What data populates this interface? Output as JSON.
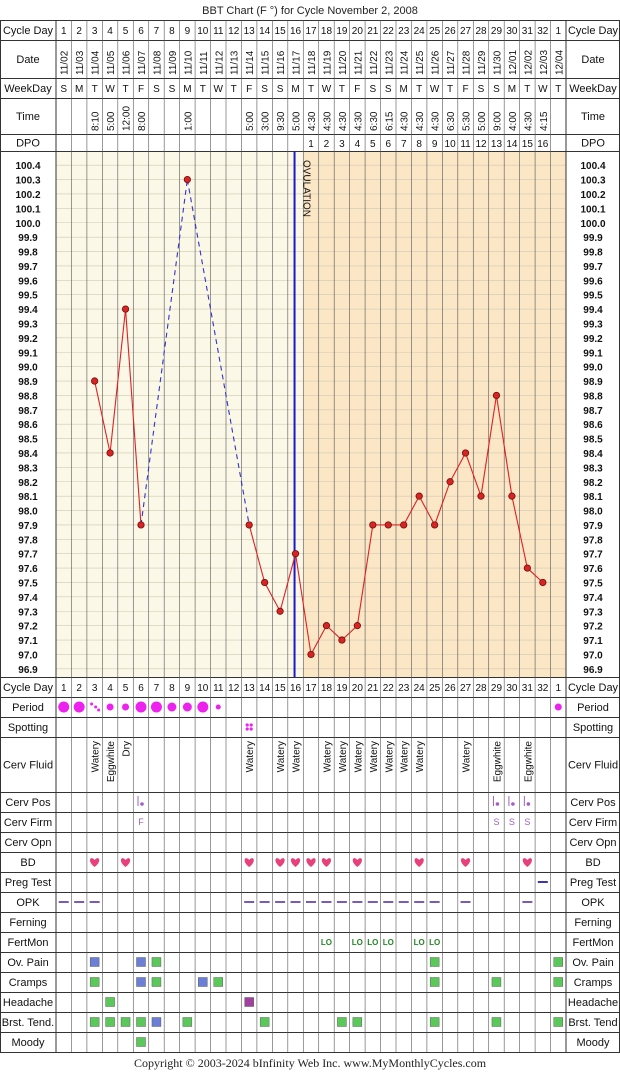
{
  "title": "BBT Chart (F °) for Cycle November 2, 2008",
  "footer": "Copyright © 2003-2024 bInfinity Web Inc.     www.MyMonthlyCycles.com",
  "row_labels": {
    "cycle_day": "Cycle Day",
    "date": "Date",
    "weekday": "WeekDay",
    "time": "Time",
    "dpo": "DPO",
    "period": "Period",
    "spotting": "Spotting",
    "cerv_fluid": "Cerv Fluid",
    "cerv_pos": "Cerv Pos",
    "cerv_firm": "Cerv Firm",
    "cerv_opn": "Cerv Opn",
    "bd": "BD",
    "preg_test": "Preg Test",
    "opk": "OPK",
    "ferning": "Ferning",
    "fertmon": "FertMon",
    "ov_pain": "Ov. Pain",
    "cramps": "Cramps",
    "headache": "Headache",
    "brst_tend": "Brst. Tend.",
    "moody": "Moody"
  },
  "right_labels": {
    "brst_tend": "Brst. Tend"
  },
  "columns": {
    "cycle_days": [
      "1",
      "2",
      "3",
      "4",
      "5",
      "6",
      "7",
      "8",
      "9",
      "10",
      "11",
      "12",
      "13",
      "14",
      "15",
      "16",
      "17",
      "18",
      "19",
      "20",
      "21",
      "22",
      "23",
      "24",
      "25",
      "26",
      "27",
      "28",
      "29",
      "30",
      "31",
      "32",
      "1"
    ],
    "dates": [
      "11/02",
      "11/03",
      "11/04",
      "11/05",
      "11/06",
      "11/07",
      "11/08",
      "11/09",
      "11/10",
      "11/11",
      "11/12",
      "11/13",
      "11/14",
      "11/15",
      "11/16",
      "11/17",
      "11/18",
      "11/19",
      "11/20",
      "11/21",
      "11/22",
      "11/23",
      "11/24",
      "11/25",
      "11/26",
      "11/27",
      "11/28",
      "11/29",
      "11/30",
      "12/01",
      "12/02",
      "12/03",
      "12/04"
    ],
    "weekdays": [
      "S",
      "M",
      "T",
      "W",
      "T",
      "F",
      "S",
      "S",
      "M",
      "T",
      "W",
      "T",
      "F",
      "S",
      "S",
      "M",
      "T",
      "W",
      "T",
      "F",
      "S",
      "S",
      "M",
      "T",
      "W",
      "T",
      "F",
      "S",
      "S",
      "M",
      "T",
      "W",
      "T"
    ],
    "times": [
      "",
      "",
      "8:10",
      "5:00",
      "12:00",
      "8:00",
      "",
      "",
      "1:00",
      "",
      "",
      "",
      "5:00",
      "3:00",
      "9:30",
      "5:00",
      "4:30",
      "4:30",
      "4:30",
      "4:30",
      "6:30",
      "6:15",
      "4:30",
      "4:30",
      "4:30",
      "6:30",
      "5:30",
      "5:00",
      "9:00",
      "4:00",
      "4:30",
      "4:15",
      ""
    ],
    "dpo": [
      "",
      "",
      "",
      "",
      "",
      "",
      "",
      "",
      "",
      "",
      "",
      "",
      "",
      "",
      "",
      "",
      "1",
      "2",
      "3",
      "4",
      "5",
      "6",
      "7",
      "8",
      "9",
      "10",
      "11",
      "12",
      "13",
      "14",
      "15",
      "16",
      ""
    ]
  },
  "chart_data": {
    "type": "line",
    "title": "BBT Chart (F °) for Cycle November 2, 2008",
    "x": [
      1,
      2,
      3,
      4,
      5,
      6,
      7,
      8,
      9,
      10,
      11,
      12,
      13,
      14,
      15,
      16,
      17,
      18,
      19,
      20,
      21,
      22,
      23,
      24,
      25,
      26,
      27,
      28,
      29,
      30,
      31,
      32,
      33
    ],
    "temperatures": [
      null,
      null,
      98.9,
      98.4,
      99.4,
      97.9,
      null,
      null,
      100.3,
      null,
      null,
      null,
      97.9,
      97.5,
      97.3,
      97.7,
      97.0,
      97.2,
      97.1,
      97.2,
      97.9,
      97.9,
      97.9,
      98.1,
      97.9,
      98.2,
      98.4,
      98.1,
      98.8,
      98.1,
      97.6,
      97.5,
      null
    ],
    "ylim": [
      96.9,
      100.4
    ],
    "y_ticks": [
      "100.4",
      "100.3",
      "100.2",
      "100.1",
      "100.0",
      "99.9",
      "99.8",
      "99.7",
      "99.6",
      "99.5",
      "99.4",
      "99.3",
      "99.2",
      "99.1",
      "99.0",
      "98.9",
      "98.8",
      "98.7",
      "98.6",
      "98.5",
      "98.4",
      "98.3",
      "98.2",
      "98.1",
      "98.0",
      "97.9",
      "97.8",
      "97.7",
      "97.6",
      "97.5",
      "97.4",
      "97.3",
      "97.2",
      "97.1",
      "97.0",
      "96.9"
    ],
    "ovulation_day": 16,
    "ovulation_label": "OVULATION",
    "colors": {
      "line": "#e02020",
      "dashed_line": "#3333cc",
      "point_fill": "#dd2222",
      "ovulation_line": "#1a1acc",
      "pre_bg": "#fbf8e8",
      "post_bg": "#fbe6c6",
      "header_bg": "#ffffff",
      "border": "#333333"
    }
  },
  "symptoms": {
    "period": [
      {
        "day": 1,
        "size": "large"
      },
      {
        "day": 2,
        "size": "large"
      },
      {
        "day": 3,
        "size": "spot"
      },
      {
        "day": 4,
        "size": "small"
      },
      {
        "day": 5,
        "size": "small"
      },
      {
        "day": 6,
        "size": "large"
      },
      {
        "day": 7,
        "size": "large"
      },
      {
        "day": 8,
        "size": "medium"
      },
      {
        "day": 9,
        "size": "medium"
      },
      {
        "day": 10,
        "size": "large"
      },
      {
        "day": 11,
        "size": "tiny"
      },
      {
        "day": 33,
        "size": "small"
      }
    ],
    "spotting": [
      13
    ],
    "cerv_fluid": [
      {
        "day": 3,
        "text": "Watery"
      },
      {
        "day": 4,
        "text": "Eggwhite"
      },
      {
        "day": 5,
        "text": "Dry"
      },
      {
        "day": 13,
        "text": "Watery"
      },
      {
        "day": 15,
        "text": "Watery"
      },
      {
        "day": 16,
        "text": "Watery"
      },
      {
        "day": 18,
        "text": "Watery"
      },
      {
        "day": 19,
        "text": "Watery"
      },
      {
        "day": 20,
        "text": "Watery"
      },
      {
        "day": 21,
        "text": "Watery"
      },
      {
        "day": 22,
        "text": "Watery"
      },
      {
        "day": 23,
        "text": "Watery"
      },
      {
        "day": 24,
        "text": "Watery"
      },
      {
        "day": 27,
        "text": "Watery"
      },
      {
        "day": 29,
        "text": "Eggwhite"
      },
      {
        "day": 31,
        "text": "Eggwhite"
      }
    ],
    "cerv_pos_days": [
      6,
      29,
      30,
      31
    ],
    "cerv_firm": [
      {
        "day": 6,
        "text": "F"
      },
      {
        "day": 29,
        "text": "S"
      },
      {
        "day": 30,
        "text": "S"
      },
      {
        "day": 31,
        "text": "S"
      }
    ],
    "bd": [
      3,
      5,
      13,
      15,
      16,
      17,
      18,
      20,
      24,
      27,
      31
    ],
    "preg_test": [
      32
    ],
    "opk": [
      1,
      2,
      3,
      13,
      14,
      15,
      16,
      17,
      18,
      19,
      20,
      21,
      22,
      23,
      24,
      25,
      27,
      31
    ],
    "fertmon": [
      {
        "day": 18,
        "text": "LO"
      },
      {
        "day": 20,
        "text": "LO"
      },
      {
        "day": 21,
        "text": "LO"
      },
      {
        "day": 22,
        "text": "LO"
      },
      {
        "day": 24,
        "text": "LO"
      },
      {
        "day": 25,
        "text": "LO"
      }
    ],
    "ov_pain": [
      {
        "day": 3,
        "color": "blue"
      },
      {
        "day": 6,
        "color": "blue"
      },
      {
        "day": 7,
        "color": "green"
      },
      {
        "day": 25,
        "color": "green"
      },
      {
        "day": 33,
        "color": "green"
      }
    ],
    "cramps": [
      {
        "day": 3,
        "color": "green"
      },
      {
        "day": 6,
        "color": "blue"
      },
      {
        "day": 7,
        "color": "green"
      },
      {
        "day": 10,
        "color": "blue"
      },
      {
        "day": 11,
        "color": "green"
      },
      {
        "day": 25,
        "color": "green"
      },
      {
        "day": 29,
        "color": "green"
      },
      {
        "day": 33,
        "color": "green"
      }
    ],
    "headache": [
      {
        "day": 4,
        "color": "green"
      },
      {
        "day": 13,
        "color": "purple"
      }
    ],
    "brst_tend": [
      {
        "day": 3,
        "color": "green"
      },
      {
        "day": 4,
        "color": "green"
      },
      {
        "day": 5,
        "color": "green"
      },
      {
        "day": 6,
        "color": "green"
      },
      {
        "day": 7,
        "color": "blue"
      },
      {
        "day": 9,
        "color": "green"
      },
      {
        "day": 14,
        "color": "green"
      },
      {
        "day": 19,
        "color": "green"
      },
      {
        "day": 20,
        "color": "green"
      },
      {
        "day": 25,
        "color": "green"
      },
      {
        "day": 29,
        "color": "green"
      },
      {
        "day": 33,
        "color": "green"
      }
    ],
    "moody": [
      {
        "day": 6,
        "color": "green"
      }
    ],
    "symptom_colors": {
      "blue": "#6b7fd6",
      "green": "#5cc85c",
      "purple": "#a040a0",
      "heart": "#e8407a",
      "period": "#ee22ee",
      "opk": "#7a5cb8",
      "fertmon": "#228822",
      "cerv": "#a060c0"
    }
  }
}
